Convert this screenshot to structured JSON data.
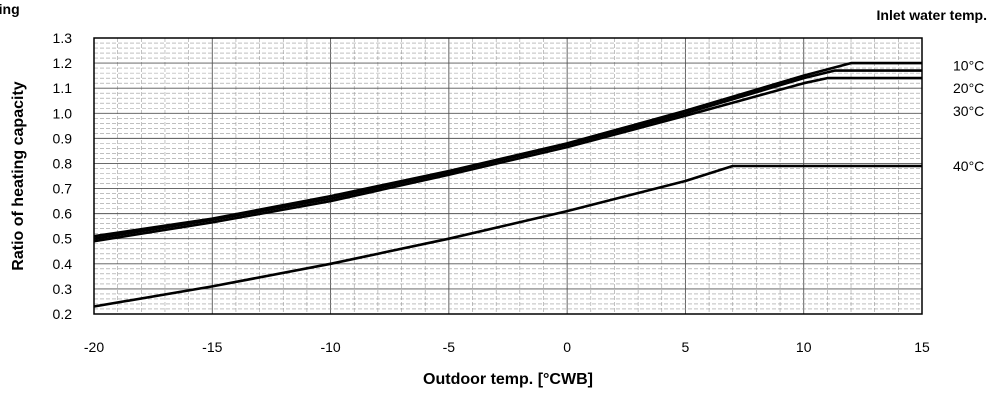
{
  "page": {
    "corner_title": "ting"
  },
  "chart_data": {
    "type": "line",
    "xlabel": "Outdoor temp. [°CWB]",
    "ylabel": "Ratio of heating capacity",
    "xlim": [
      -20,
      15
    ],
    "ylim": [
      0.2,
      1.3
    ],
    "x_ticks": [
      "-20",
      "-15",
      "-10",
      "-5",
      "0",
      "5",
      "10",
      "15"
    ],
    "y_ticks": [
      "0.2",
      "0.3",
      "0.4",
      "0.5",
      "0.6",
      "0.7",
      "0.8",
      "0.9",
      "1.0",
      "1.1",
      "1.2",
      "1.3"
    ],
    "grid": true,
    "legend_title": "Inlet water temp.",
    "series": [
      {
        "name": "10°C",
        "points": [
          [
            -20,
            0.51
          ],
          [
            -15,
            0.58
          ],
          [
            -10,
            0.67
          ],
          [
            -5,
            0.77
          ],
          [
            0,
            0.88
          ],
          [
            5,
            1.01
          ],
          [
            10,
            1.15
          ],
          [
            12,
            1.2
          ],
          [
            15,
            1.2
          ]
        ]
      },
      {
        "name": "20°C",
        "points": [
          [
            -20,
            0.5
          ],
          [
            -15,
            0.575
          ],
          [
            -10,
            0.66
          ],
          [
            -5,
            0.765
          ],
          [
            0,
            0.875
          ],
          [
            5,
            1.0
          ],
          [
            10,
            1.14
          ],
          [
            11.3,
            1.17
          ],
          [
            15,
            1.17
          ]
        ]
      },
      {
        "name": "30°C",
        "points": [
          [
            -20,
            0.49
          ],
          [
            -15,
            0.565
          ],
          [
            -10,
            0.65
          ],
          [
            -5,
            0.755
          ],
          [
            0,
            0.865
          ],
          [
            5,
            0.99
          ],
          [
            10,
            1.12
          ],
          [
            11,
            1.14
          ],
          [
            15,
            1.14
          ]
        ]
      },
      {
        "name": "40°C",
        "points": [
          [
            -20,
            0.23
          ],
          [
            -15,
            0.31
          ],
          [
            -10,
            0.4
          ],
          [
            -5,
            0.5
          ],
          [
            0,
            0.61
          ],
          [
            5,
            0.73
          ],
          [
            7,
            0.79
          ],
          [
            15,
            0.79
          ]
        ]
      }
    ]
  }
}
